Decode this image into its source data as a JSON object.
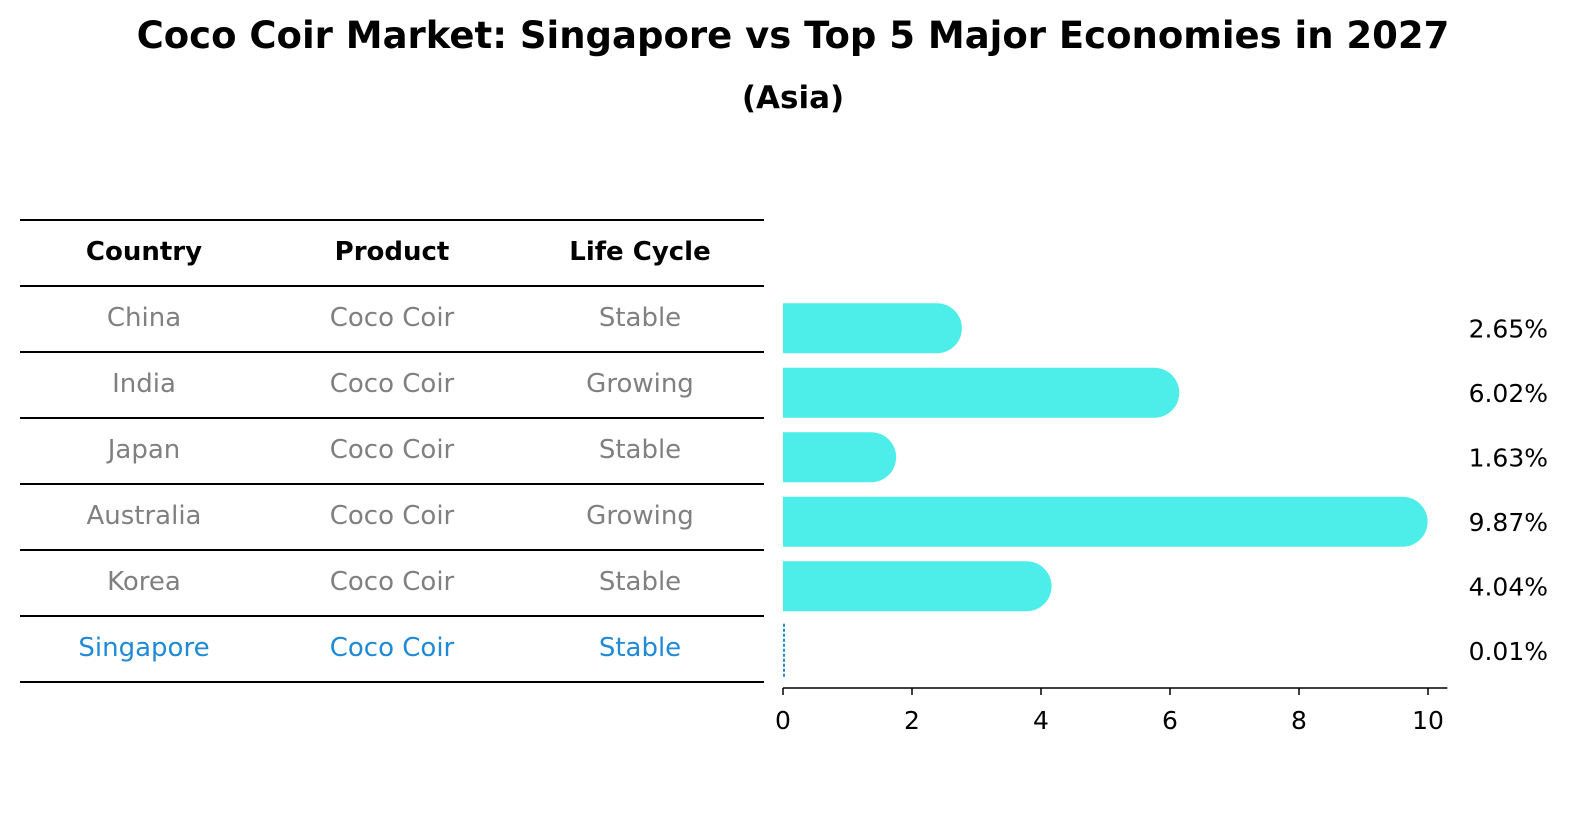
{
  "title": "Coco Coir Market: Singapore vs Top 5 Major Economies in 2027",
  "subtitle": "(Asia)",
  "table": {
    "headers": [
      "Country",
      "Product",
      "Life Cycle"
    ],
    "rows": [
      {
        "country": "China",
        "product": "Coco Coir",
        "life_cycle": "Stable"
      },
      {
        "country": "India",
        "product": "Coco Coir",
        "life_cycle": "Growing"
      },
      {
        "country": "Japan",
        "product": "Coco Coir",
        "life_cycle": "Stable"
      },
      {
        "country": "Australia",
        "product": "Coco Coir",
        "life_cycle": "Growing"
      },
      {
        "country": "Korea",
        "product": "Coco Coir",
        "life_cycle": "Stable"
      },
      {
        "country": "Singapore",
        "product": "Coco Coir",
        "life_cycle": "Stable"
      }
    ],
    "highlight_row": "Singapore"
  },
  "colors": {
    "bar": "#4deee9",
    "highlight": "#1f8ad6",
    "row_text": "#808080"
  },
  "chart_data": {
    "type": "bar",
    "orientation": "horizontal",
    "categories": [
      "China",
      "India",
      "Japan",
      "Australia",
      "Korea",
      "Singapore"
    ],
    "values": [
      2.65,
      6.02,
      1.63,
      9.87,
      4.04,
      0.01
    ],
    "value_labels": [
      "2.65%",
      "6.02%",
      "1.63%",
      "9.87%",
      "4.04%",
      "0.01%"
    ],
    "xlim": [
      0,
      10.3
    ],
    "xticks": [
      0,
      2,
      4,
      6,
      8,
      10
    ],
    "xtick_labels": [
      "0",
      "2",
      "4",
      "6",
      "8",
      "10"
    ],
    "xlabel": "",
    "ylabel": "",
    "grid": false,
    "legend": "none"
  }
}
